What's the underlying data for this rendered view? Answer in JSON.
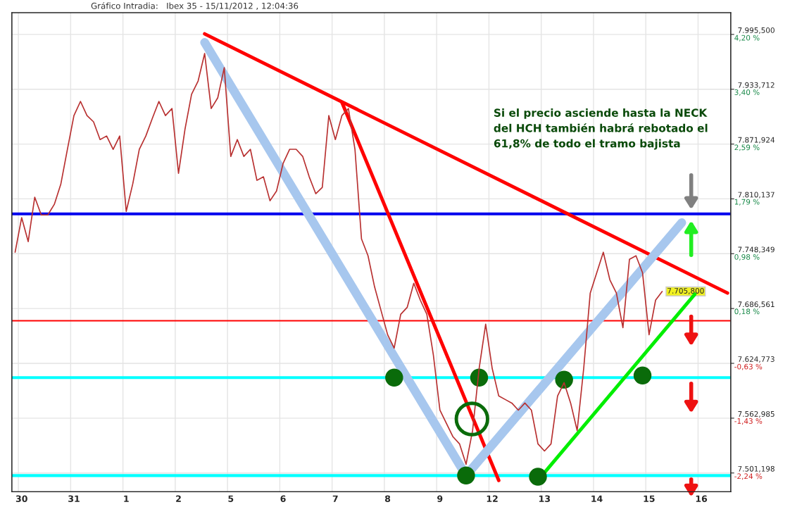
{
  "chart_data": {
    "type": "line",
    "title": "Gráfico Intradia:   Ibex 35 - 15/11/2012 , 12:04:36",
    "categories": [
      null,
      "30",
      null,
      null,
      null,
      null,
      null,
      null,
      null,
      "31",
      null,
      null,
      null,
      null,
      null,
      null,
      null,
      "1",
      null,
      null,
      null,
      null,
      null,
      null,
      null,
      "2",
      null,
      null,
      null,
      null,
      null,
      null,
      null,
      "5",
      null,
      null,
      null,
      null,
      null,
      null,
      null,
      "6",
      null,
      null,
      null,
      null,
      null,
      null,
      null,
      "7",
      null,
      null,
      null,
      null,
      null,
      null,
      null,
      "8",
      null,
      null,
      null,
      null,
      null,
      null,
      null,
      "9",
      null,
      null,
      null,
      null,
      null,
      null,
      null,
      "12",
      null,
      null,
      null,
      null,
      null,
      null,
      null,
      "13",
      null,
      null,
      null,
      null,
      null,
      null,
      null,
      "14",
      null,
      null,
      null,
      null,
      null,
      null,
      null,
      "15",
      null,
      null,
      null,
      null,
      null,
      null,
      null,
      "16",
      null,
      null,
      null,
      null
    ],
    "ylim": [
      7480,
      8020
    ],
    "yticks": [
      {
        "value": 7995.5,
        "label": "7.995,500"
      },
      {
        "value": 7933.712,
        "label": "7.933,712"
      },
      {
        "value": 7871.924,
        "label": "7.871,924"
      },
      {
        "value": 7810.137,
        "label": "7.810,137"
      },
      {
        "value": 7748.349,
        "label": "7.748,349"
      },
      {
        "value": 7686.561,
        "label": "7.686,561"
      },
      {
        "value": 7624.773,
        "label": "7.624,773"
      },
      {
        "value": 7562.985,
        "label": "7.562,985"
      },
      {
        "value": 7501.198,
        "label": "7.501,198"
      }
    ],
    "y2lim": [
      -2.512,
      4.526
    ],
    "y2ticks": [
      {
        "value": 4.2,
        "label": "4,20 %"
      },
      {
        "value": 3.4,
        "label": "3,40 %"
      },
      {
        "value": 2.59,
        "label": "2,59 %"
      },
      {
        "value": 1.79,
        "label": "1,79 %"
      },
      {
        "value": 0.98,
        "label": "0,98 %"
      },
      {
        "value": 0.18,
        "label": "0,18 %"
      },
      {
        "value": -0.63,
        "label": "-0,63 %"
      },
      {
        "value": -1.43,
        "label": "-1,43 %"
      },
      {
        "value": -2.24,
        "label": "-2,24 %"
      }
    ],
    "grid": true,
    "marker": "none",
    "line_style": "solid",
    "series": [
      {
        "color": "#b83030",
        "values": [
          7750,
          7789,
          7762,
          7812,
          7792,
          7792,
          7804,
          7827,
          7866,
          7904,
          7920,
          7904,
          7897,
          7877,
          7881,
          7866,
          7881,
          7796,
          7827,
          7866,
          7881,
          7901,
          7920,
          7904,
          7912,
          7839,
          7889,
          7928,
          7943,
          7974,
          7912,
          7924,
          7958,
          7858,
          7877,
          7858,
          7866,
          7831,
          7835,
          7808,
          7819,
          7850,
          7866,
          7866,
          7858,
          7835,
          7816,
          7823,
          7904,
          7877,
          7904,
          7912,
          7866,
          7765,
          7746,
          7711,
          7684,
          7657,
          7642,
          7680,
          7688,
          7715,
          7696,
          7680,
          7634,
          7572,
          7557,
          7542,
          7534,
          7511,
          7549,
          7619,
          7669,
          7619,
          7588,
          7584,
          7580,
          7572,
          7580,
          7572,
          7534,
          7526,
          7534,
          7588,
          7603,
          7580,
          7549,
          7619,
          7704,
          7727,
          7750,
          7719,
          7704,
          7665,
          7742,
          7746,
          7727,
          7657,
          7696,
          7705.8,
          null,
          null,
          null,
          null,
          null,
          null,
          null,
          null,
          null,
          null
        ]
      },
      {
        "type": "line",
        "color": "#ff0000",
        "values": [
          null,
          null,
          null,
          null,
          null,
          null,
          null,
          null,
          null,
          null,
          null,
          null,
          null,
          null,
          null,
          null,
          null,
          null,
          null,
          null,
          null,
          null,
          null,
          null,
          null,
          null,
          null,
          null,
          null,
          7996.1,
          null,
          null,
          null,
          null,
          null,
          null,
          null,
          null,
          null,
          null,
          null,
          null,
          null,
          null,
          null,
          null,
          null,
          null,
          null,
          null,
          null,
          null,
          null,
          null,
          null,
          null,
          null,
          null,
          null,
          null,
          null,
          null,
          null,
          null,
          null,
          null,
          null,
          null,
          null,
          null,
          null,
          null,
          null,
          null,
          null,
          null,
          null,
          null,
          null,
          null,
          null,
          null,
          null,
          null,
          null,
          null,
          null,
          null,
          null,
          null,
          null,
          null,
          null,
          null,
          null,
          null,
          null,
          null,
          null,
          null,
          null,
          null,
          null,
          null,
          null,
          null,
          null,
          null,
          null,
          7704
        ]
      },
      {
        "type": "line",
        "color": "#ff0000",
        "values": [
          null,
          null,
          null,
          null,
          null,
          null,
          null,
          null,
          null,
          null,
          null,
          null,
          null,
          null,
          null,
          null,
          null,
          null,
          null,
          null,
          null,
          null,
          null,
          null,
          null,
          null,
          null,
          null,
          null,
          null,
          null,
          null,
          null,
          null,
          null,
          null,
          null,
          null,
          null,
          null,
          null,
          null,
          null,
          null,
          null,
          null,
          null,
          null,
          null,
          null,
          7919,
          null,
          null,
          null,
          null,
          null,
          null,
          null,
          null,
          null,
          null,
          null,
          null,
          null,
          null,
          null,
          null,
          null,
          null,
          null,
          null,
          null,
          null,
          null,
          7492.8,
          null,
          null,
          null,
          null,
          null,
          null,
          null,
          null,
          null,
          null,
          null,
          null,
          null,
          null,
          null,
          null,
          null,
          null,
          null,
          null,
          null,
          null,
          null,
          null,
          null,
          null,
          null,
          null,
          null,
          null,
          null,
          null,
          null,
          null,
          null
        ]
      },
      {
        "type": "line",
        "color": "#a7c7ee",
        "values": [
          null,
          null,
          null,
          null,
          null,
          null,
          null,
          null,
          null,
          null,
          null,
          null,
          null,
          null,
          null,
          null,
          null,
          null,
          null,
          null,
          null,
          null,
          null,
          null,
          null,
          null,
          null,
          null,
          null,
          7986.4,
          null,
          null,
          null,
          null,
          null,
          null,
          null,
          null,
          null,
          null,
          null,
          null,
          null,
          null,
          null,
          null,
          null,
          null,
          null,
          null,
          null,
          null,
          null,
          null,
          null,
          null,
          null,
          null,
          null,
          null,
          null,
          null,
          null,
          null,
          null,
          null,
          null,
          null,
          null,
          7498.3,
          null,
          null,
          null,
          null,
          null,
          null,
          null,
          null,
          null,
          null,
          null,
          null,
          null,
          null,
          null,
          null,
          null,
          null,
          null,
          null,
          null,
          null,
          null,
          null,
          null,
          null,
          null,
          null,
          null,
          null,
          null,
          null,
          7783.3,
          null,
          null,
          null,
          null,
          null,
          null,
          null
        ]
      },
      {
        "type": "line",
        "color": "#00ee00",
        "values": [
          null,
          null,
          null,
          null,
          null,
          null,
          null,
          null,
          null,
          null,
          null,
          null,
          null,
          null,
          null,
          null,
          null,
          null,
          null,
          null,
          null,
          null,
          null,
          null,
          null,
          null,
          null,
          null,
          null,
          null,
          null,
          null,
          null,
          null,
          null,
          null,
          null,
          null,
          null,
          null,
          null,
          null,
          null,
          null,
          null,
          null,
          null,
          null,
          null,
          null,
          null,
          null,
          null,
          null,
          null,
          null,
          null,
          null,
          null,
          null,
          null,
          null,
          null,
          null,
          null,
          null,
          null,
          null,
          null,
          null,
          null,
          null,
          null,
          null,
          null,
          null,
          null,
          null,
          null,
          null,
          null,
          7501.6,
          null,
          null,
          null,
          null,
          null,
          null,
          null,
          null,
          null,
          null,
          null,
          null,
          null,
          null,
          null,
          null,
          null,
          null,
          null,
          null,
          null,
          null,
          7702.6,
          null,
          null,
          null,
          null,
          null
        ]
      },
      {
        "type": "scatter",
        "color": "#0a6b0a",
        "marker": "circle",
        "values": [
          null,
          null,
          null,
          null,
          null,
          null,
          null,
          null,
          null,
          null,
          null,
          null,
          null,
          null,
          null,
          null,
          null,
          null,
          null,
          null,
          null,
          null,
          null,
          null,
          null,
          null,
          null,
          null,
          null,
          null,
          null,
          null,
          null,
          null,
          null,
          null,
          null,
          null,
          null,
          null,
          null,
          null,
          null,
          null,
          null,
          null,
          null,
          null,
          null,
          null,
          null,
          null,
          null,
          null,
          null,
          null,
          null,
          null,
          7608.7,
          null,
          null,
          null,
          null,
          null,
          null,
          null,
          null,
          null,
          null,
          7498.3,
          null,
          7608.7,
          null,
          null,
          null,
          null,
          null,
          null,
          null,
          null,
          7497,
          null,
          null,
          null,
          7606.4,
          null,
          null,
          null,
          null,
          null,
          null,
          null,
          null,
          null,
          null,
          null,
          7611,
          null,
          null,
          null,
          null,
          null,
          null,
          null,
          null,
          null,
          null,
          null,
          null,
          null
        ]
      }
    ],
    "ref_lines": [
      {
        "axis": "y",
        "value": 7793.2,
        "color": "#0000ee",
        "line_style": "solid"
      },
      {
        "axis": "y",
        "value": 7608.7,
        "color": "#00ffff",
        "line_style": "solid"
      },
      {
        "axis": "y",
        "value": 7498.3,
        "color": "#00ffff",
        "line_style": "solid"
      },
      {
        "axis": "y",
        "value": 7672.8,
        "color": "#ff0000",
        "line_style": "solid"
      }
    ],
    "annotations": [
      "Si el precio asciende hasta la NECK\ndel HCH también habrá rebotado el\n61,8% de todo el tramo bajista",
      "7.705,800"
    ]
  }
}
